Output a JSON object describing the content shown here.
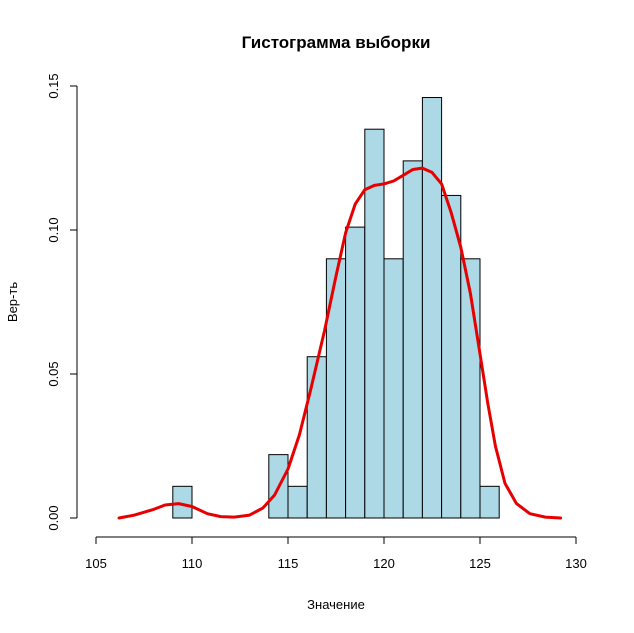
{
  "chart_data": {
    "type": "bar",
    "title": "Гистограмма выборки",
    "xlabel": "Значение",
    "ylabel": "Вер-ть",
    "xlim": [
      105,
      130
    ],
    "ylim": [
      0,
      0.15
    ],
    "x_ticks": [
      105,
      110,
      115,
      120,
      125,
      130
    ],
    "y_ticks": [
      0.0,
      0.05,
      0.1,
      0.15
    ],
    "x_tick_labels": [
      "105",
      "110",
      "115",
      "120",
      "125",
      "130"
    ],
    "y_tick_labels": [
      "0.00",
      "0.05",
      "0.10",
      "0.15"
    ],
    "bin_width": 1,
    "bins": [
      {
        "x0": 109,
        "x1": 110,
        "value": 0.011
      },
      {
        "x0": 114,
        "x1": 115,
        "value": 0.022
      },
      {
        "x0": 115,
        "x1": 116,
        "value": 0.011
      },
      {
        "x0": 116,
        "x1": 117,
        "value": 0.056
      },
      {
        "x0": 117,
        "x1": 118,
        "value": 0.09
      },
      {
        "x0": 118,
        "x1": 119,
        "value": 0.101
      },
      {
        "x0": 119,
        "x1": 120,
        "value": 0.135
      },
      {
        "x0": 120,
        "x1": 121,
        "value": 0.09
      },
      {
        "x0": 121,
        "x1": 122,
        "value": 0.124
      },
      {
        "x0": 122,
        "x1": 123,
        "value": 0.146
      },
      {
        "x0": 123,
        "x1": 124,
        "value": 0.112
      },
      {
        "x0": 124,
        "x1": 125,
        "value": 0.09
      },
      {
        "x0": 125,
        "x1": 126,
        "value": 0.011
      }
    ],
    "density_curve": {
      "x": [
        106.2,
        107,
        108,
        108.6,
        109.3,
        110,
        110.8,
        111.5,
        112.2,
        113,
        113.7,
        114.3,
        115,
        115.6,
        116.2,
        116.9,
        117.5,
        118,
        118.5,
        119,
        119.5,
        120,
        120.5,
        121,
        121.5,
        122,
        122.5,
        123,
        123.5,
        124,
        124.5,
        125,
        125.4,
        125.8,
        126.3,
        126.9,
        127.6,
        128.4,
        129.2
      ],
      "y": [
        0.0,
        0.001,
        0.003,
        0.0045,
        0.005,
        0.004,
        0.0015,
        0.0005,
        0.0003,
        0.001,
        0.0035,
        0.008,
        0.017,
        0.029,
        0.045,
        0.065,
        0.084,
        0.099,
        0.109,
        0.114,
        0.1155,
        0.116,
        0.117,
        0.119,
        0.121,
        0.1215,
        0.12,
        0.116,
        0.106,
        0.094,
        0.078,
        0.057,
        0.04,
        0.025,
        0.012,
        0.005,
        0.0015,
        0.0003,
        0.0
      ]
    },
    "colors": {
      "bar_fill": "#add8e6",
      "bar_stroke": "#000000",
      "density_line": "#e60000"
    }
  }
}
